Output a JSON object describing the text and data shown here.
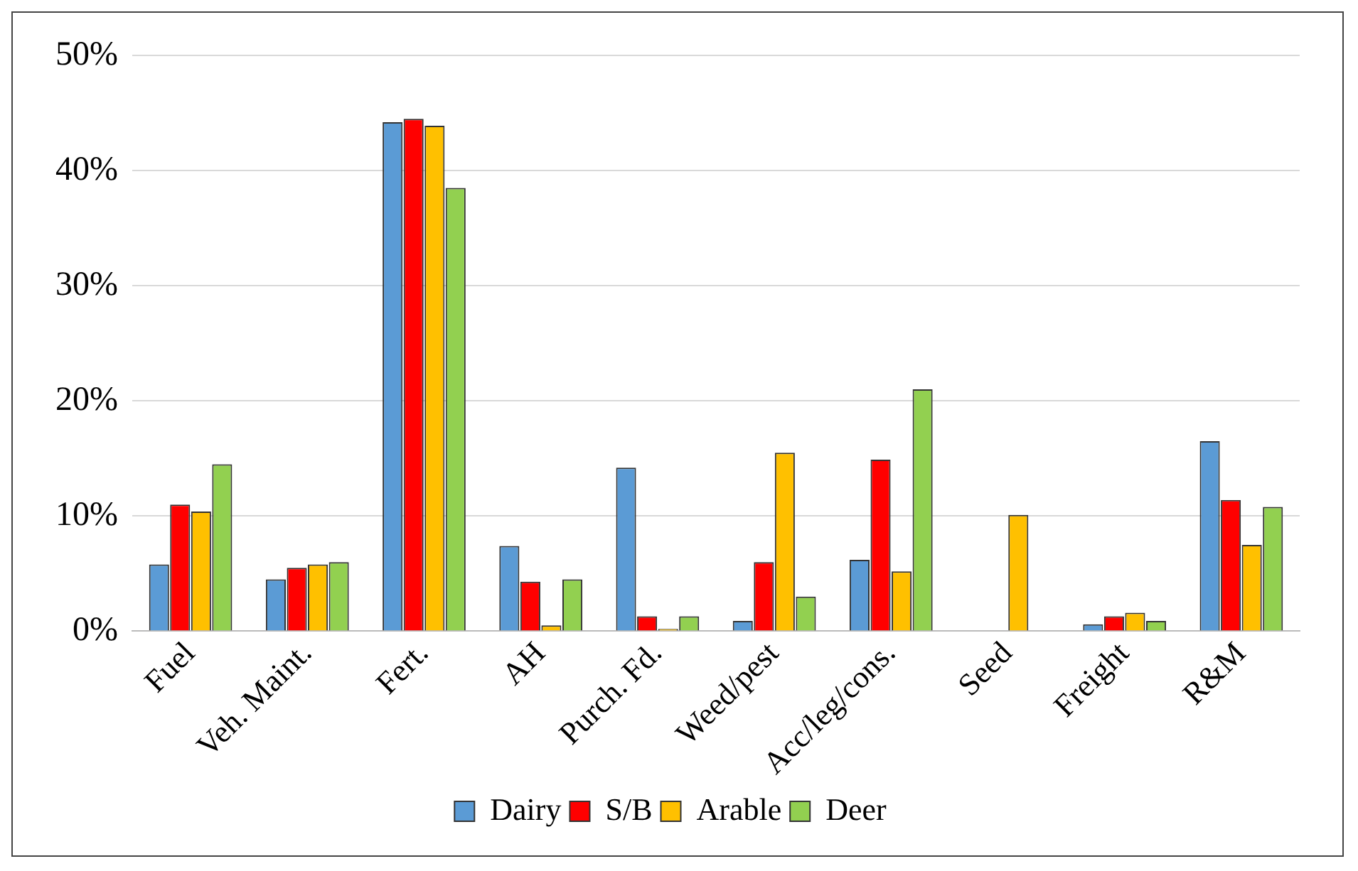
{
  "chart_data": {
    "type": "bar",
    "categories": [
      "Fuel",
      "Veh. Maint.",
      "Fert.",
      "AH",
      "Purch. Fd.",
      "Weed/pest",
      "Acc/leg/cons.",
      "Seed",
      "Freight",
      "R&M"
    ],
    "series": [
      {
        "name": "Dairy",
        "color": "#5b9bd5",
        "values": [
          5.8,
          4.5,
          44.2,
          7.4,
          14.2,
          0.9,
          6.2,
          0,
          0.6,
          16.5
        ]
      },
      {
        "name": "S/B",
        "color": "#ff0000",
        "values": [
          11.0,
          5.5,
          44.5,
          4.3,
          1.3,
          6.0,
          14.9,
          0,
          1.3,
          11.4
        ]
      },
      {
        "name": "Arable",
        "color": "#ffc000",
        "values": [
          10.4,
          5.8,
          43.9,
          0.5,
          0.2,
          15.5,
          5.2,
          10.1,
          1.6,
          7.5
        ]
      },
      {
        "name": "Deer",
        "color": "#92d050",
        "values": [
          14.5,
          6.0,
          38.5,
          4.5,
          1.3,
          3.0,
          21.0,
          0,
          0.9,
          10.8
        ]
      }
    ],
    "ylim": [
      0,
      50
    ],
    "yticks": [
      {
        "value": 0,
        "label": "0%"
      },
      {
        "value": 10,
        "label": "10%"
      },
      {
        "value": 20,
        "label": "20%"
      },
      {
        "value": 30,
        "label": "30%"
      },
      {
        "value": 40,
        "label": "40%"
      },
      {
        "value": 50,
        "label": "50%"
      }
    ],
    "grid": "y",
    "legend": "bottom"
  }
}
